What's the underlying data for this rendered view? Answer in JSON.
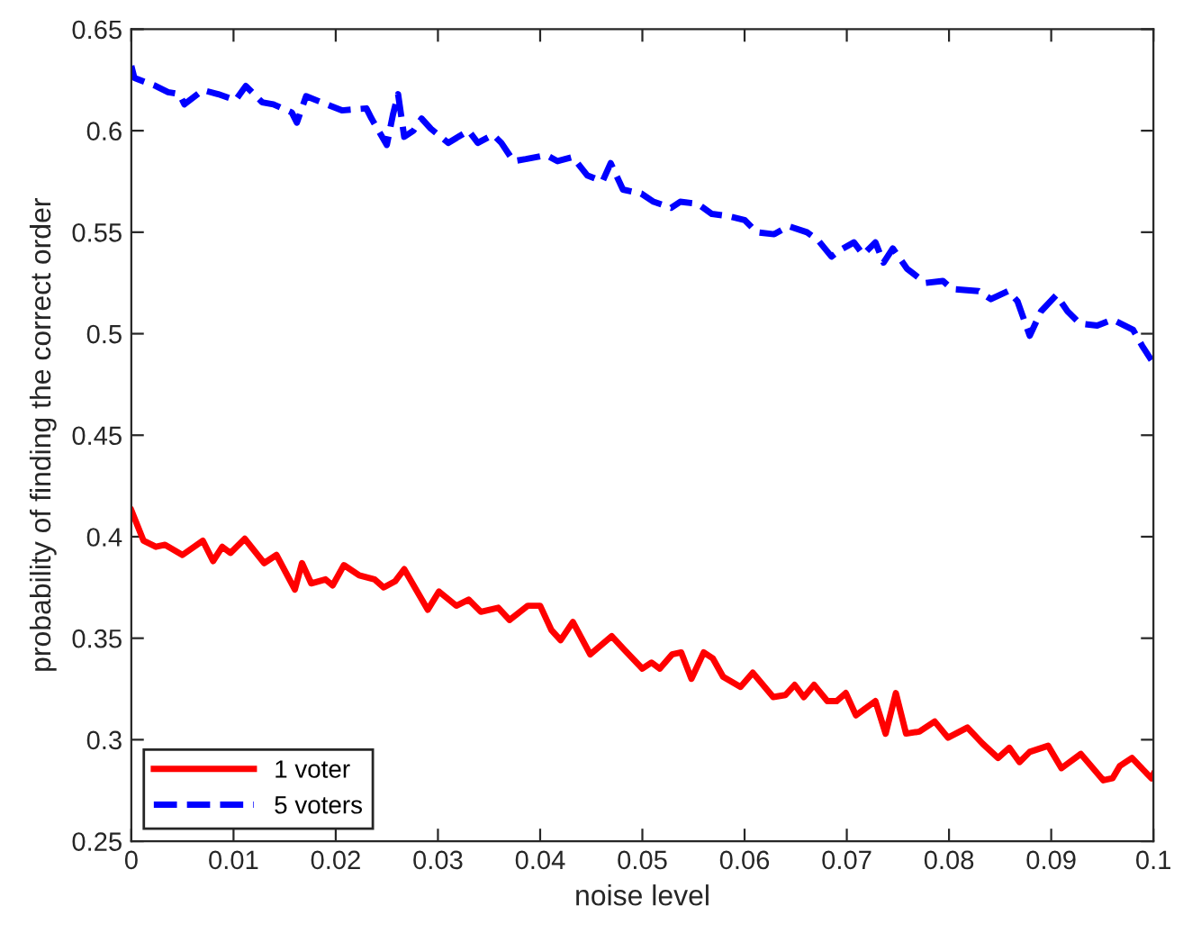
{
  "chart_data": {
    "type": "line",
    "xlabel": "noise level",
    "ylabel": "probability of finding the correct order",
    "xlim": [
      0,
      0.1
    ],
    "ylim": [
      0.25,
      0.65
    ],
    "xticks": [
      0,
      0.01,
      0.02,
      0.03,
      0.04,
      0.05,
      0.06,
      0.07,
      0.08,
      0.09,
      0.1
    ],
    "yticks": [
      0.25,
      0.3,
      0.35,
      0.4,
      0.45,
      0.5,
      0.55,
      0.6,
      0.65
    ],
    "grid": false,
    "legend": "bottom left",
    "marker": "none",
    "series": [
      {
        "name": "1 voter",
        "color": "#ff0000",
        "line_style": "solid",
        "x": [
          0,
          0.0012,
          0.0024,
          0.0033,
          0.005,
          0.007,
          0.008,
          0.0089,
          0.0097,
          0.0111,
          0.013,
          0.0142,
          0.016,
          0.0167,
          0.0176,
          0.019,
          0.0197,
          0.0208,
          0.0223,
          0.0238,
          0.0247,
          0.0258,
          0.0267,
          0.029,
          0.0301,
          0.0318,
          0.033,
          0.0342,
          0.0359,
          0.037,
          0.0388,
          0.04,
          0.0411,
          0.042,
          0.0432,
          0.0449,
          0.047,
          0.0481,
          0.05,
          0.0509,
          0.0517,
          0.0529,
          0.0538,
          0.0548,
          0.056,
          0.0569,
          0.0579,
          0.0596,
          0.0608,
          0.0628,
          0.064,
          0.0649,
          0.0658,
          0.0668,
          0.0681,
          0.069,
          0.0699,
          0.0709,
          0.0728,
          0.0738,
          0.0748,
          0.0758,
          0.0771,
          0.0786,
          0.0799,
          0.0818,
          0.0833,
          0.0848,
          0.0859,
          0.0869,
          0.0879,
          0.0897,
          0.091,
          0.0929,
          0.0951,
          0.096,
          0.0967,
          0.0979,
          0.0998,
          0.1
        ],
        "values": [
          0.413,
          0.398,
          0.395,
          0.396,
          0.391,
          0.398,
          0.388,
          0.395,
          0.392,
          0.399,
          0.387,
          0.391,
          0.374,
          0.387,
          0.377,
          0.379,
          0.376,
          0.386,
          0.381,
          0.379,
          0.375,
          0.378,
          0.384,
          0.364,
          0.373,
          0.366,
          0.369,
          0.363,
          0.365,
          0.359,
          0.366,
          0.366,
          0.354,
          0.349,
          0.358,
          0.342,
          0.351,
          0.345,
          0.335,
          0.338,
          0.335,
          0.342,
          0.343,
          0.33,
          0.343,
          0.34,
          0.331,
          0.326,
          0.333,
          0.321,
          0.322,
          0.327,
          0.321,
          0.327,
          0.319,
          0.319,
          0.323,
          0.312,
          0.319,
          0.303,
          0.323,
          0.303,
          0.304,
          0.309,
          0.301,
          0.306,
          0.298,
          0.291,
          0.296,
          0.289,
          0.294,
          0.297,
          0.286,
          0.293,
          0.28,
          0.281,
          0.287,
          0.291,
          0.281,
          0.283
        ]
      },
      {
        "name": "5 voters",
        "color": "#0000ff",
        "line_style": "dashed",
        "x": [
          0,
          0.0003,
          0.0024,
          0.0036,
          0.0047,
          0.0052,
          0.007,
          0.0085,
          0.0102,
          0.0112,
          0.0128,
          0.0139,
          0.0157,
          0.0162,
          0.0171,
          0.0191,
          0.0206,
          0.023,
          0.0235,
          0.025,
          0.0256,
          0.0261,
          0.0267,
          0.0276,
          0.0284,
          0.0293,
          0.031,
          0.033,
          0.0339,
          0.0354,
          0.0362,
          0.0374,
          0.0386,
          0.0406,
          0.0417,
          0.0432,
          0.0446,
          0.0461,
          0.0469,
          0.0481,
          0.0499,
          0.0511,
          0.0528,
          0.0537,
          0.0554,
          0.0568,
          0.0583,
          0.06,
          0.0612,
          0.0629,
          0.0643,
          0.0661,
          0.0672,
          0.0685,
          0.0693,
          0.0707,
          0.0716,
          0.0728,
          0.0736,
          0.0745,
          0.0759,
          0.0777,
          0.0794,
          0.0803,
          0.0829,
          0.0841,
          0.0858,
          0.0867,
          0.0879,
          0.089,
          0.0905,
          0.0916,
          0.0928,
          0.0945,
          0.096,
          0.098,
          0.0989,
          0.0998
        ],
        "values": [
          0.632,
          0.626,
          0.622,
          0.619,
          0.618,
          0.613,
          0.62,
          0.618,
          0.615,
          0.622,
          0.614,
          0.613,
          0.609,
          0.604,
          0.617,
          0.613,
          0.61,
          0.611,
          0.606,
          0.593,
          0.608,
          0.618,
          0.597,
          0.6,
          0.606,
          0.601,
          0.594,
          0.6,
          0.594,
          0.598,
          0.594,
          0.585,
          0.586,
          0.588,
          0.585,
          0.587,
          0.578,
          0.575,
          0.584,
          0.571,
          0.569,
          0.565,
          0.562,
          0.565,
          0.564,
          0.559,
          0.558,
          0.556,
          0.55,
          0.549,
          0.553,
          0.55,
          0.546,
          0.538,
          0.541,
          0.545,
          0.539,
          0.545,
          0.535,
          0.542,
          0.532,
          0.525,
          0.526,
          0.522,
          0.521,
          0.517,
          0.521,
          0.516,
          0.499,
          0.511,
          0.519,
          0.511,
          0.505,
          0.504,
          0.507,
          0.502,
          0.494,
          0.487
        ]
      }
    ]
  }
}
